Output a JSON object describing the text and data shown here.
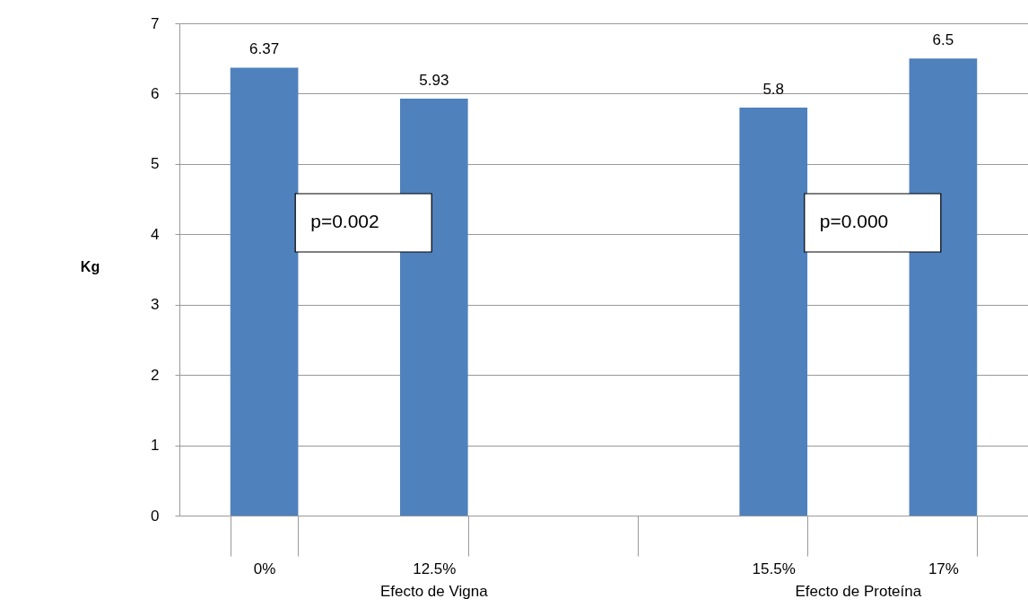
{
  "chart_data": {
    "type": "bar",
    "ylabel": "Kg",
    "categories": [
      "0%",
      "12.5%",
      null,
      "15.5%",
      "17%"
    ],
    "values": [
      6.37,
      5.93,
      null,
      5.8,
      6.5
    ],
    "color": "#4f81bd",
    "ylim": [
      0,
      7
    ],
    "yticks": [
      0,
      1,
      2,
      3,
      4,
      5,
      6,
      7
    ],
    "grid": "y",
    "data_labels": true,
    "annotations": [
      "p=0.002",
      "p=0.000",
      "Efecto de Vigna",
      "Efecto de Proteína"
    ]
  }
}
